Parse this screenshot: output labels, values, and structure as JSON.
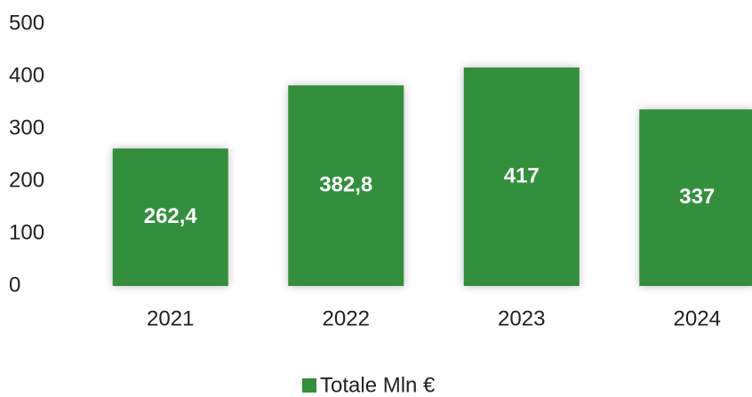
{
  "chart_data": {
    "type": "bar",
    "categories": [
      "2021",
      "2022",
      "2023",
      "2024"
    ],
    "series": [
      {
        "name": "Totale Mln €",
        "color": "#338f3a",
        "values": [
          262.4,
          382.8,
          417,
          337
        ],
        "value_labels": [
          "262,4",
          "382,8",
          "417",
          "337"
        ]
      }
    ],
    "ylim": [
      0,
      500
    ],
    "yticks": [
      0,
      100,
      200,
      300,
      400,
      500
    ],
    "grid": false,
    "legend": "bottom"
  }
}
